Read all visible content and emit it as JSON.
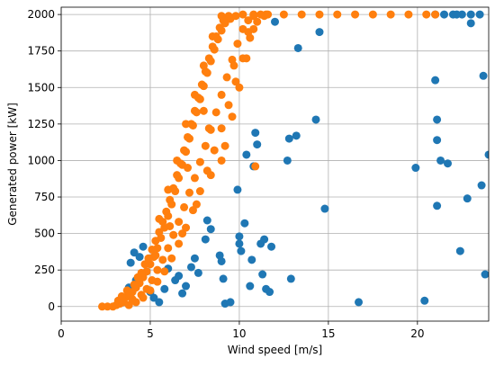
{
  "chart_data": {
    "type": "scatter",
    "title": "",
    "xlabel": "Wind speed [m/s]",
    "ylabel": "Generated power [kW]",
    "xlim": [
      0,
      24
    ],
    "ylim": [
      -100,
      2050
    ],
    "xticks": [
      0,
      5,
      10,
      15,
      20
    ],
    "yticks": [
      0,
      250,
      500,
      750,
      1000,
      1250,
      1500,
      1750,
      2000
    ],
    "grid": true,
    "series": [
      {
        "color": "#1f77b4",
        "marker_radius": 4.5,
        "points": [
          [
            3.9,
            300
          ],
          [
            4.1,
            370
          ],
          [
            4.4,
            340
          ],
          [
            4.6,
            410
          ],
          [
            4.2,
            180
          ],
          [
            3.8,
            130
          ],
          [
            4.8,
            240
          ],
          [
            5.2,
            60
          ],
          [
            5.5,
            30
          ],
          [
            5.8,
            120
          ],
          [
            6.4,
            180
          ],
          [
            6.6,
            210
          ],
          [
            6.8,
            90
          ],
          [
            7.0,
            140
          ],
          [
            7.3,
            270
          ],
          [
            7.5,
            330
          ],
          [
            7.7,
            230
          ],
          [
            8.1,
            460
          ],
          [
            8.2,
            590
          ],
          [
            8.4,
            530
          ],
          [
            8.9,
            350
          ],
          [
            9.0,
            310
          ],
          [
            9.1,
            190
          ],
          [
            9.2,
            20
          ],
          [
            9.5,
            30
          ],
          [
            10.0,
            480
          ],
          [
            10.0,
            430
          ],
          [
            10.1,
            380
          ],
          [
            10.4,
            1040
          ],
          [
            10.6,
            140
          ],
          [
            10.7,
            320
          ],
          [
            10.8,
            960
          ],
          [
            10.9,
            1190
          ],
          [
            11.0,
            1110
          ],
          [
            11.2,
            430
          ],
          [
            11.3,
            220
          ],
          [
            11.4,
            460
          ],
          [
            11.5,
            120
          ],
          [
            11.7,
            100
          ],
          [
            11.8,
            410
          ],
          [
            12.7,
            1000
          ],
          [
            12.8,
            1150
          ],
          [
            12.9,
            190
          ],
          [
            13.2,
            1170
          ],
          [
            13.3,
            1770
          ],
          [
            14.3,
            1280
          ],
          [
            14.8,
            670
          ],
          [
            16.7,
            30
          ],
          [
            19.9,
            950
          ],
          [
            20.4,
            40
          ],
          [
            21.0,
            1550
          ],
          [
            21.1,
            1280
          ],
          [
            21.1,
            1140
          ],
          [
            21.1,
            690
          ],
          [
            21.3,
            1000
          ],
          [
            21.7,
            980
          ],
          [
            22.4,
            380
          ],
          [
            22.8,
            740
          ],
          [
            23.0,
            1940
          ],
          [
            23.6,
            830
          ],
          [
            23.8,
            220
          ],
          [
            24.0,
            1040
          ],
          [
            23.7,
            1580
          ],
          [
            21.5,
            2000
          ],
          [
            22.0,
            2000
          ],
          [
            22.5,
            2000
          ],
          [
            23.0,
            2000
          ],
          [
            23.5,
            2000
          ],
          [
            21.0,
            2000
          ],
          [
            22.2,
            2000
          ],
          [
            14.5,
            1880
          ],
          [
            12.0,
            1950
          ],
          [
            9.9,
            800
          ],
          [
            10.3,
            570
          ],
          [
            6.0,
            260
          ],
          [
            5.0,
            100
          ]
        ]
      },
      {
        "color": "#ff7f0e",
        "marker_radius": 4.5,
        "points": [
          [
            2.3,
            0
          ],
          [
            2.6,
            0
          ],
          [
            2.9,
            0
          ],
          [
            3.1,
            10
          ],
          [
            3.3,
            20
          ],
          [
            3.5,
            30
          ],
          [
            3.6,
            60
          ],
          [
            3.8,
            80
          ],
          [
            4.0,
            100
          ],
          [
            4.2,
            130
          ],
          [
            4.4,
            160
          ],
          [
            4.6,
            200
          ],
          [
            4.8,
            240
          ],
          [
            5.0,
            290
          ],
          [
            5.2,
            340
          ],
          [
            5.4,
            400
          ],
          [
            5.6,
            470
          ],
          [
            5.8,
            540
          ],
          [
            6.0,
            620
          ],
          [
            6.2,
            700
          ],
          [
            6.4,
            790
          ],
          [
            6.6,
            880
          ],
          [
            6.8,
            970
          ],
          [
            7.0,
            1060
          ],
          [
            7.2,
            1150
          ],
          [
            7.4,
            1240
          ],
          [
            7.6,
            1330
          ],
          [
            7.8,
            1420
          ],
          [
            8.0,
            1510
          ],
          [
            8.2,
            1600
          ],
          [
            8.4,
            1680
          ],
          [
            8.6,
            1760
          ],
          [
            8.8,
            1830
          ],
          [
            9.0,
            1890
          ],
          [
            9.2,
            1940
          ],
          [
            9.5,
            1970
          ],
          [
            9.8,
            1990
          ],
          [
            10.2,
            2000
          ],
          [
            10.8,
            2000
          ],
          [
            11.5,
            2000
          ],
          [
            12.5,
            2000
          ],
          [
            13.5,
            2000
          ],
          [
            14.5,
            2000
          ],
          [
            15.5,
            2000
          ],
          [
            16.5,
            2000
          ],
          [
            17.5,
            2000
          ],
          [
            18.5,
            2000
          ],
          [
            19.5,
            2000
          ],
          [
            20.5,
            2000
          ],
          [
            21.0,
            2000
          ],
          [
            3.2,
            40
          ],
          [
            3.4,
            70
          ],
          [
            3.7,
            110
          ],
          [
            4.1,
            150
          ],
          [
            4.3,
            200
          ],
          [
            4.5,
            230
          ],
          [
            4.7,
            290
          ],
          [
            4.9,
            330
          ],
          [
            5.1,
            390
          ],
          [
            5.3,
            450
          ],
          [
            5.5,
            510
          ],
          [
            5.7,
            580
          ],
          [
            5.9,
            650
          ],
          [
            6.1,
            730
          ],
          [
            6.3,
            810
          ],
          [
            6.5,
            900
          ],
          [
            6.7,
            980
          ],
          [
            6.9,
            1070
          ],
          [
            7.1,
            1160
          ],
          [
            7.3,
            1250
          ],
          [
            7.5,
            1340
          ],
          [
            7.7,
            1430
          ],
          [
            7.9,
            1520
          ],
          [
            8.1,
            1610
          ],
          [
            8.3,
            1700
          ],
          [
            8.5,
            1780
          ],
          [
            8.7,
            1850
          ],
          [
            8.9,
            1910
          ],
          [
            9.1,
            1960
          ],
          [
            9.4,
            1990
          ],
          [
            4.5,
            80
          ],
          [
            4.8,
            120
          ],
          [
            5.1,
            180
          ],
          [
            5.4,
            250
          ],
          [
            5.7,
            320
          ],
          [
            6.0,
            400
          ],
          [
            6.3,
            490
          ],
          [
            6.6,
            580
          ],
          [
            6.9,
            680
          ],
          [
            7.2,
            780
          ],
          [
            7.5,
            880
          ],
          [
            7.8,
            990
          ],
          [
            8.1,
            1100
          ],
          [
            8.4,
            1210
          ],
          [
            8.7,
            1330
          ],
          [
            9.0,
            1450
          ],
          [
            9.3,
            1570
          ],
          [
            9.6,
            1690
          ],
          [
            9.9,
            1800
          ],
          [
            10.2,
            1900
          ],
          [
            10.5,
            1960
          ],
          [
            10.8,
            1990
          ],
          [
            3.8,
            10
          ],
          [
            4.2,
            30
          ],
          [
            4.6,
            60
          ],
          [
            5.0,
            110
          ],
          [
            5.4,
            170
          ],
          [
            5.8,
            240
          ],
          [
            6.2,
            330
          ],
          [
            6.6,
            430
          ],
          [
            7.0,
            540
          ],
          [
            7.4,
            660
          ],
          [
            7.8,
            790
          ],
          [
            8.2,
            930
          ],
          [
            8.6,
            1070
          ],
          [
            9.0,
            1220
          ],
          [
            9.4,
            1380
          ],
          [
            9.8,
            1540
          ],
          [
            10.2,
            1700
          ],
          [
            10.6,
            1840
          ],
          [
            11.0,
            1950
          ],
          [
            11.4,
            1990
          ],
          [
            5.5,
            600
          ],
          [
            6.0,
            800
          ],
          [
            6.5,
            1000
          ],
          [
            7.0,
            1250
          ],
          [
            7.5,
            1450
          ],
          [
            8.0,
            1650
          ],
          [
            8.5,
            1850
          ],
          [
            9.0,
            1990
          ],
          [
            6.8,
            500
          ],
          [
            7.6,
            700
          ],
          [
            8.4,
            900
          ],
          [
            9.2,
            1100
          ],
          [
            9.6,
            1300
          ],
          [
            10.0,
            1500
          ],
          [
            10.4,
            1700
          ],
          [
            10.8,
            1900
          ],
          [
            11.2,
            2000
          ],
          [
            11.6,
            2000
          ],
          [
            8.0,
            1340
          ],
          [
            9.0,
            1000
          ],
          [
            10.9,
            960
          ],
          [
            9.7,
            1650
          ],
          [
            10.5,
            1880
          ],
          [
            8.3,
            1220
          ],
          [
            7.1,
            950
          ],
          [
            6.1,
            550
          ],
          [
            5.3,
            350
          ],
          [
            4.0,
            50
          ]
        ]
      }
    ]
  }
}
